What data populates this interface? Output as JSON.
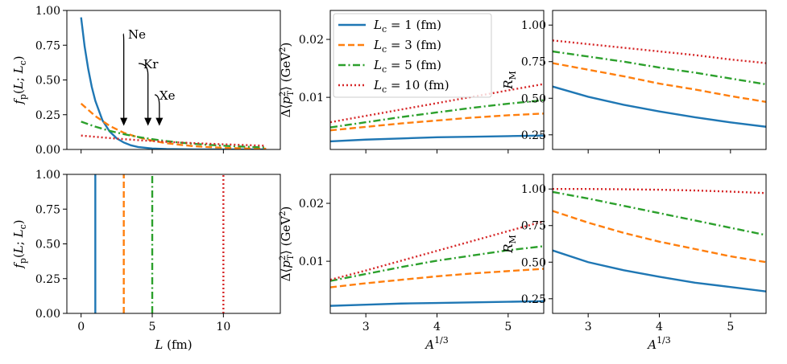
{
  "colors": {
    "lc1": "#1f77b4",
    "lc3": "#ff7f0e",
    "lc5": "#2ca02c",
    "lc10": "#d62728"
  },
  "chart_data": [
    {
      "id": "top-left",
      "type": "line",
      "xlabel": "",
      "ylabel": "f_p(L; L_c)",
      "xlim": [
        -1,
        14
      ],
      "ylim": [
        0,
        1.0
      ],
      "yticks": [
        "0.00",
        "0.25",
        "0.50",
        "0.75",
        "1.00"
      ],
      "yticks_values": [
        0,
        0.25,
        0.5,
        0.75,
        1.0
      ],
      "xticks_values": [
        0,
        5,
        10
      ],
      "xtick_labels_visible": false,
      "series": [
        {
          "name": "L_c = 1 (fm)",
          "style": "solid",
          "color_key": "lc1",
          "x": [
            0,
            0.25,
            0.5,
            0.75,
            1,
            1.5,
            2,
            2.5,
            3,
            3.5,
            4,
            5,
            6,
            8,
            10,
            13
          ],
          "y": [
            0.95,
            0.74,
            0.58,
            0.45,
            0.35,
            0.21,
            0.13,
            0.08,
            0.05,
            0.03,
            0.018,
            0.007,
            0.003,
            0.0,
            0.0,
            0.0
          ]
        },
        {
          "name": "L_c = 3 (fm)",
          "style": "dashed",
          "color_key": "lc3",
          "x": [
            0,
            1,
            2,
            3,
            4,
            5,
            6,
            7,
            8,
            9,
            10,
            11,
            12,
            13
          ],
          "y": [
            0.33,
            0.24,
            0.17,
            0.12,
            0.088,
            0.063,
            0.045,
            0.033,
            0.023,
            0.017,
            0.012,
            0.009,
            0.006,
            0.005
          ]
        },
        {
          "name": "L_c = 5 (fm)",
          "style": "dashdot",
          "color_key": "lc5",
          "x": [
            0,
            1,
            2,
            3,
            4,
            5,
            6,
            7,
            8,
            9,
            10,
            11,
            12,
            13
          ],
          "y": [
            0.2,
            0.164,
            0.134,
            0.11,
            0.09,
            0.074,
            0.06,
            0.049,
            0.04,
            0.033,
            0.027,
            0.022,
            0.018,
            0.015
          ]
        },
        {
          "name": "L_c = 10 (fm)",
          "style": "dotted",
          "color_key": "lc10",
          "x": [
            0,
            2,
            4,
            6,
            8,
            10,
            12,
            13
          ],
          "y": [
            0.1,
            0.082,
            0.067,
            0.055,
            0.045,
            0.037,
            0.03,
            0.027
          ]
        }
      ],
      "annotations": [
        {
          "text": "Ne",
          "x": 3.0,
          "y": 0.17
        },
        {
          "text": "Kr",
          "x": 4.7,
          "y": 0.17
        },
        {
          "text": "Xe",
          "x": 5.5,
          "y": 0.17
        }
      ]
    },
    {
      "id": "bottom-left",
      "type": "line",
      "xlabel": "L (fm)",
      "ylabel": "f_p(L; L_c)",
      "xlim": [
        -1,
        14
      ],
      "ylim": [
        0,
        1.0
      ],
      "yticks": [
        "0.00",
        "0.25",
        "0.50",
        "0.75",
        "1.00"
      ],
      "yticks_values": [
        0,
        0.25,
        0.5,
        0.75,
        1.0
      ],
      "xticks": [
        "0",
        "5",
        "10"
      ],
      "xticks_values": [
        0,
        5,
        10
      ],
      "series": [
        {
          "name": "L_c = 1 (fm)",
          "style": "solid",
          "color_key": "lc1",
          "x": [
            1,
            1
          ],
          "y": [
            0,
            1.0
          ]
        },
        {
          "name": "L_c = 3 (fm)",
          "style": "dashed",
          "color_key": "lc3",
          "x": [
            3,
            3
          ],
          "y": [
            0,
            1.0
          ]
        },
        {
          "name": "L_c = 5 (fm)",
          "style": "dashdot",
          "color_key": "lc5",
          "x": [
            5,
            5
          ],
          "y": [
            0,
            1.0
          ]
        },
        {
          "name": "L_c = 10 (fm)",
          "style": "dotted",
          "color_key": "lc10",
          "x": [
            10,
            10
          ],
          "y": [
            0,
            1.0
          ]
        }
      ]
    },
    {
      "id": "top-middle",
      "type": "line",
      "xlabel": "",
      "ylabel": "Δ⟨p_T²⟩ (GeV²)",
      "xlim": [
        2.5,
        5.5
      ],
      "ylim": [
        0.001,
        0.025
      ],
      "yticks": [
        "0.01",
        "0.02"
      ],
      "yticks_values": [
        0.01,
        0.02
      ],
      "xticks_values": [
        3,
        4,
        5
      ],
      "xtick_labels_visible": false,
      "legend": {
        "placement": "top-left",
        "entries": [
          "L_c = 1 (fm)",
          "L_c = 3 (fm)",
          "L_c = 5 (fm)",
          "L_c = 10 (fm)"
        ]
      },
      "series": [
        {
          "name": "L_c = 1 (fm)",
          "style": "solid",
          "color_key": "lc1",
          "x": [
            2.5,
            3,
            3.5,
            4,
            4.5,
            5,
            5.5
          ],
          "y": [
            0.0024,
            0.0027,
            0.0029,
            0.0031,
            0.0032,
            0.0033,
            0.0034
          ]
        },
        {
          "name": "L_c = 3 (fm)",
          "style": "dashed",
          "color_key": "lc3",
          "x": [
            2.5,
            3,
            3.5,
            4,
            4.5,
            5,
            5.5
          ],
          "y": [
            0.0043,
            0.0049,
            0.0055,
            0.006,
            0.0065,
            0.0069,
            0.0072
          ]
        },
        {
          "name": "L_c = 5 (fm)",
          "style": "dashdot",
          "color_key": "lc5",
          "x": [
            2.5,
            3,
            3.5,
            4,
            4.5,
            5,
            5.5
          ],
          "y": [
            0.0048,
            0.0057,
            0.0066,
            0.0074,
            0.0082,
            0.0089,
            0.0095
          ]
        },
        {
          "name": "L_c = 10 (fm)",
          "style": "dotted",
          "color_key": "lc10",
          "x": [
            2.5,
            3,
            3.5,
            4,
            4.5,
            5,
            5.5
          ],
          "y": [
            0.0057,
            0.0068,
            0.0079,
            0.009,
            0.0101,
            0.0112,
            0.0123
          ]
        }
      ]
    },
    {
      "id": "bottom-middle",
      "type": "line",
      "xlabel": "A^{1/3}",
      "ylabel": "Δ⟨p_T²⟩ (GeV²)",
      "xlim": [
        2.5,
        5.5
      ],
      "ylim": [
        0.001,
        0.025
      ],
      "yticks": [
        "0.01",
        "0.02"
      ],
      "yticks_values": [
        0.01,
        0.02
      ],
      "xticks": [
        "3",
        "4",
        "5"
      ],
      "xticks_values": [
        3,
        4,
        5
      ],
      "series": [
        {
          "name": "L_c = 1 (fm)",
          "style": "solid",
          "color_key": "lc1",
          "x": [
            2.5,
            3,
            3.5,
            4,
            4.5,
            5,
            5.5
          ],
          "y": [
            0.0023,
            0.0025,
            0.0027,
            0.0028,
            0.0029,
            0.003,
            0.0031
          ]
        },
        {
          "name": "L_c = 3 (fm)",
          "style": "dashed",
          "color_key": "lc3",
          "x": [
            2.5,
            3,
            3.5,
            4,
            4.5,
            5,
            5.5
          ],
          "y": [
            0.0055,
            0.0062,
            0.0068,
            0.0074,
            0.0079,
            0.0083,
            0.0087
          ]
        },
        {
          "name": "L_c = 5 (fm)",
          "style": "dashdot",
          "color_key": "lc5",
          "x": [
            2.5,
            3,
            3.5,
            4,
            4.5,
            5,
            5.5
          ],
          "y": [
            0.0066,
            0.0078,
            0.009,
            0.0101,
            0.011,
            0.0119,
            0.0126
          ]
        },
        {
          "name": "L_c = 10 (fm)",
          "style": "dotted",
          "color_key": "lc10",
          "x": [
            2.5,
            3,
            3.5,
            4,
            4.5,
            5,
            5.5
          ],
          "y": [
            0.0068,
            0.0084,
            0.0101,
            0.0118,
            0.0135,
            0.0152,
            0.0169
          ]
        }
      ]
    },
    {
      "id": "top-right",
      "type": "line",
      "xlabel": "",
      "ylabel": "R_M",
      "xlim": [
        2.5,
        5.5
      ],
      "ylim": [
        0.15,
        1.1
      ],
      "yticks": [
        "0.25",
        "0.50",
        "0.75",
        "1.00"
      ],
      "yticks_values": [
        0.25,
        0.5,
        0.75,
        1.0
      ],
      "xticks_values": [
        3,
        4,
        5
      ],
      "xtick_labels_visible": false,
      "series": [
        {
          "name": "L_c = 1 (fm)",
          "style": "solid",
          "color_key": "lc1",
          "x": [
            2.5,
            3,
            3.5,
            4,
            4.5,
            5,
            5.5
          ],
          "y": [
            0.58,
            0.51,
            0.455,
            0.41,
            0.37,
            0.335,
            0.305
          ]
        },
        {
          "name": "L_c = 3 (fm)",
          "style": "dashed",
          "color_key": "lc3",
          "x": [
            2.5,
            3,
            3.5,
            4,
            4.5,
            5,
            5.5
          ],
          "y": [
            0.74,
            0.695,
            0.65,
            0.6,
            0.56,
            0.515,
            0.475
          ]
        },
        {
          "name": "L_c = 5 (fm)",
          "style": "dashdot",
          "color_key": "lc5",
          "x": [
            2.5,
            3,
            3.5,
            4,
            4.5,
            5,
            5.5
          ],
          "y": [
            0.82,
            0.785,
            0.75,
            0.71,
            0.675,
            0.635,
            0.595
          ]
        },
        {
          "name": "L_c = 10 (fm)",
          "style": "dotted",
          "color_key": "lc10",
          "x": [
            2.5,
            3,
            3.5,
            4,
            4.5,
            5,
            5.5
          ],
          "y": [
            0.895,
            0.87,
            0.845,
            0.82,
            0.795,
            0.765,
            0.74
          ]
        }
      ]
    },
    {
      "id": "bottom-right",
      "type": "line",
      "xlabel": "A^{1/3}",
      "ylabel": "R_M",
      "xlim": [
        2.5,
        5.5
      ],
      "ylim": [
        0.15,
        1.1
      ],
      "yticks": [
        "0.25",
        "0.50",
        "0.75",
        "1.00"
      ],
      "yticks_values": [
        0.25,
        0.5,
        0.75,
        1.0
      ],
      "xticks": [
        "3",
        "4",
        "5"
      ],
      "xticks_values": [
        3,
        4,
        5
      ],
      "series": [
        {
          "name": "L_c = 1 (fm)",
          "style": "solid",
          "color_key": "lc1",
          "x": [
            2.5,
            3,
            3.5,
            4,
            4.5,
            5,
            5.5
          ],
          "y": [
            0.58,
            0.5,
            0.445,
            0.4,
            0.36,
            0.33,
            0.3
          ]
        },
        {
          "name": "L_c = 3 (fm)",
          "style": "dashed",
          "color_key": "lc3",
          "x": [
            2.5,
            3,
            3.5,
            4,
            4.5,
            5,
            5.5
          ],
          "y": [
            0.85,
            0.77,
            0.7,
            0.64,
            0.59,
            0.54,
            0.5
          ]
        },
        {
          "name": "L_c = 5 (fm)",
          "style": "dashdot",
          "color_key": "lc5",
          "x": [
            2.5,
            3,
            3.5,
            4,
            4.5,
            5,
            5.5
          ],
          "y": [
            0.98,
            0.935,
            0.885,
            0.835,
            0.785,
            0.735,
            0.685
          ]
        },
        {
          "name": "L_c = 10 (fm)",
          "style": "dotted",
          "color_key": "lc10",
          "x": [
            2.5,
            3,
            3.5,
            4,
            4.5,
            5,
            5.5
          ],
          "y": [
            1.0,
            1.0,
            0.998,
            0.995,
            0.99,
            0.982,
            0.972
          ]
        }
      ]
    }
  ]
}
